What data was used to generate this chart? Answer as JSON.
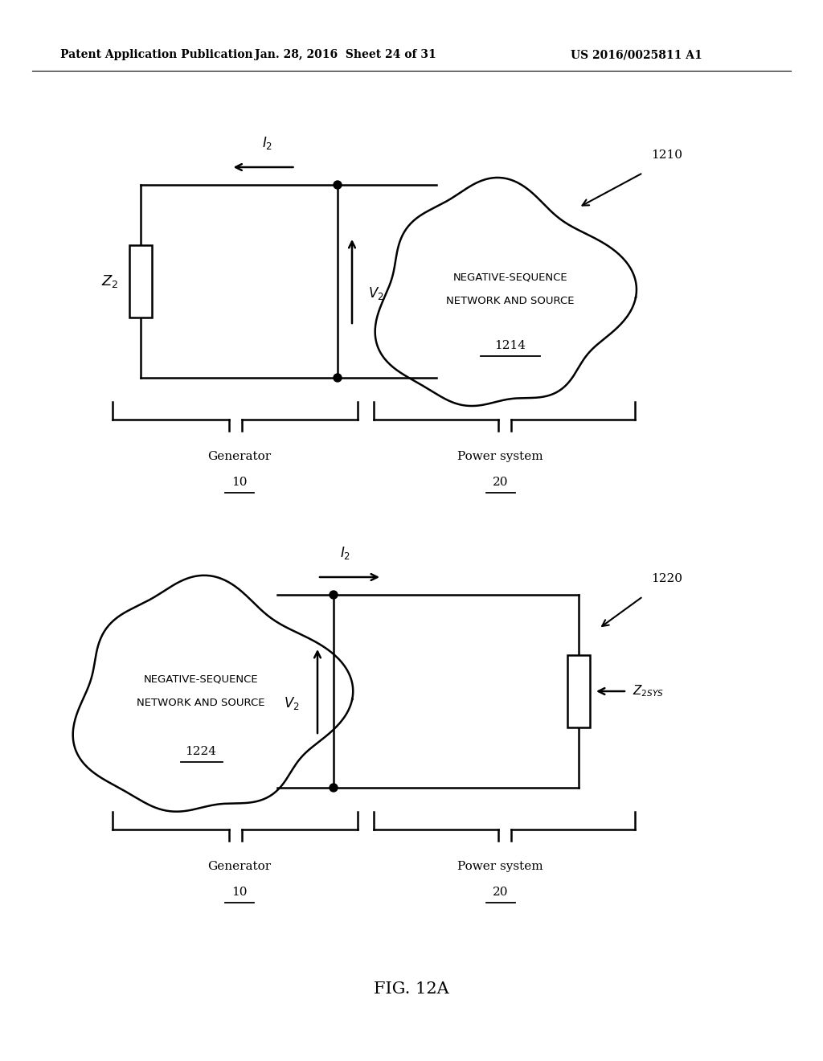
{
  "title": "FIG. 12A",
  "header_left": "Patent Application Publication",
  "header_mid": "Jan. 28, 2016  Sheet 24 of 31",
  "header_right": "US 2016/0025811 A1",
  "bg_color": "#ffffff",
  "line_color": "#000000",
  "d1_label": "1210",
  "d1_cloud_text1": "NEGATIVE-SEQUENCE",
  "d1_cloud_text2": "NETWORK AND SOURCE",
  "d1_cloud_num": "1214",
  "d1_Z2": "Z",
  "d1_Z2sub": "2",
  "d1_V2": "V",
  "d1_V2sub": "2",
  "d1_I2": "I",
  "d1_I2sub": "2",
  "d1_gen_label": "Generator",
  "d1_gen_num": "10",
  "d1_sys_label": "Power system",
  "d1_sys_num": "20",
  "d2_label": "1220",
  "d2_cloud_text1": "NEGATIVE-SEQUENCE",
  "d2_cloud_text2": "NETWORK AND SOURCE",
  "d2_cloud_num": "1224",
  "d2_Z2sys": "Z",
  "d2_Z2sys_sub": "2SYS",
  "d2_V2": "V",
  "d2_V2sub": "2",
  "d2_I2": "I",
  "d2_I2sub": "2",
  "d2_gen_label": "Generator",
  "d2_gen_num": "10",
  "d2_sys_label": "Power system",
  "d2_sys_num": "20"
}
